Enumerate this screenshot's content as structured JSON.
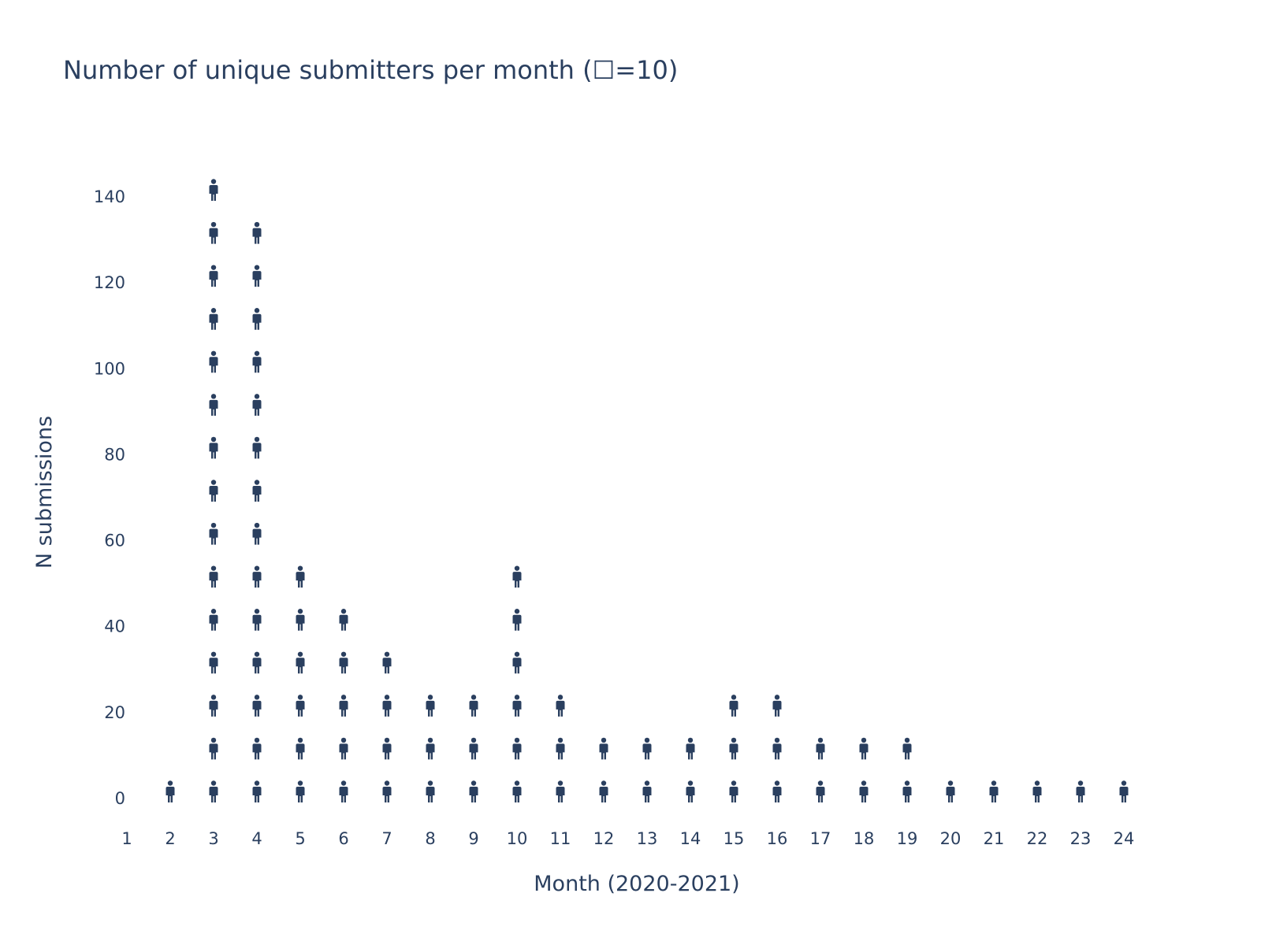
{
  "chart_data": {
    "type": "scatter",
    "subtype": "pictogram",
    "title": "Number of unique submitters per month  (☐=10)",
    "xlabel": "Month (2020-2021)",
    "ylabel": "N submissions",
    "x_ticks": [
      "1",
      "2",
      "3",
      "4",
      "5",
      "6",
      "7",
      "8",
      "9",
      "10",
      "11",
      "12",
      "13",
      "14",
      "15",
      "16",
      "17",
      "18",
      "19",
      "20",
      "21",
      "22",
      "23",
      "24"
    ],
    "y_ticks": [
      "0",
      "20",
      "40",
      "60",
      "80",
      "100",
      "120",
      "140"
    ],
    "xlim": [
      1,
      24
    ],
    "ylim": [
      0,
      140
    ],
    "icon_unit": 10,
    "icon": "person-icon",
    "grid": false,
    "color": "#2a3f5f",
    "x": [
      1,
      2,
      3,
      4,
      5,
      6,
      7,
      8,
      9,
      10,
      11,
      12,
      13,
      14,
      15,
      16,
      17,
      18,
      19,
      20,
      21,
      22,
      23,
      24
    ],
    "icon_counts": [
      0,
      1,
      15,
      14,
      6,
      5,
      4,
      3,
      3,
      6,
      3,
      2,
      2,
      2,
      3,
      3,
      2,
      2,
      2,
      1,
      1,
      1,
      1,
      1
    ]
  }
}
